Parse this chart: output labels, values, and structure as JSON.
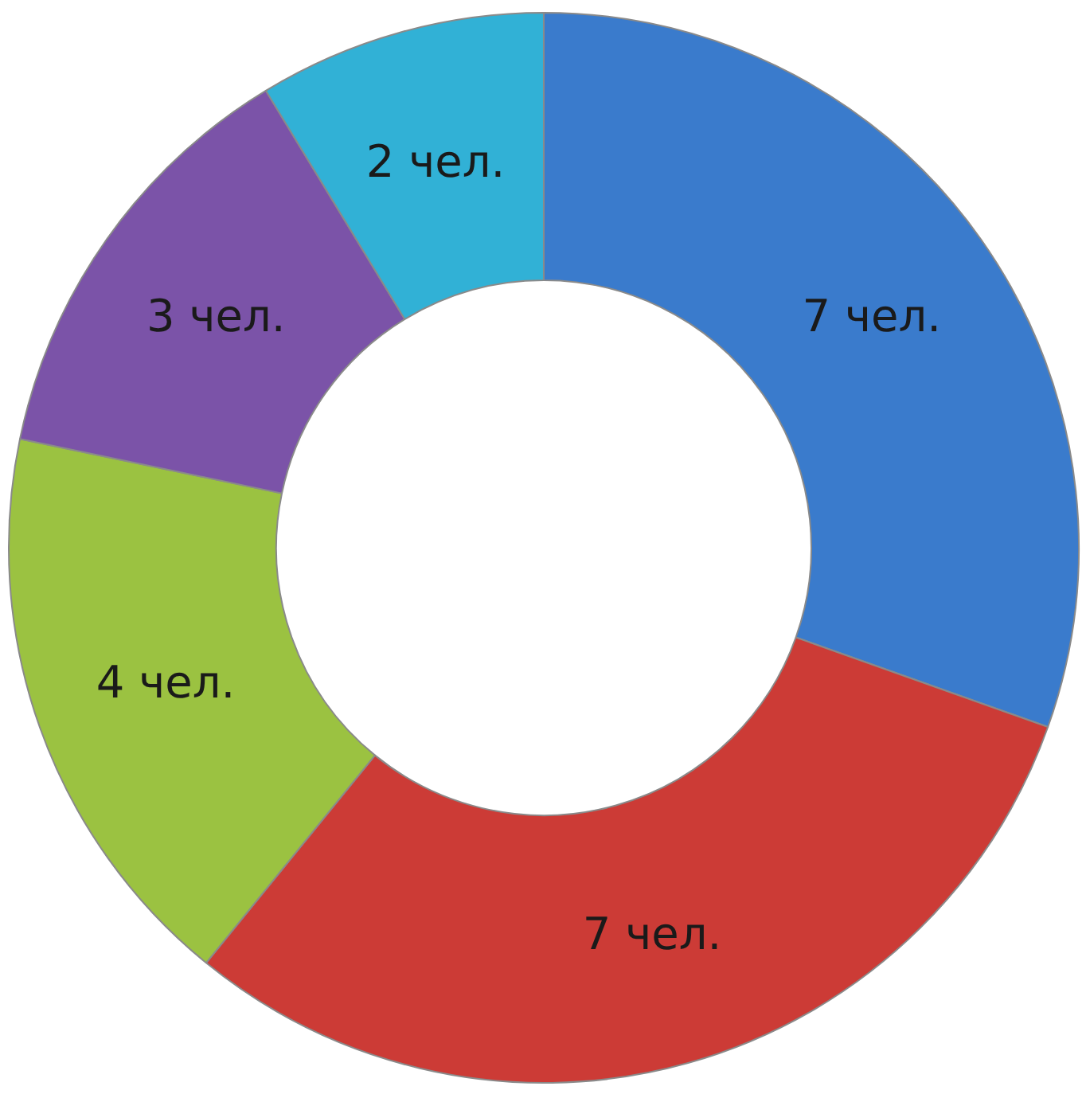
{
  "chart_data": {
    "type": "donut",
    "categories": [
      null,
      null,
      null,
      null,
      null
    ],
    "values": [
      7,
      7,
      4,
      3,
      2
    ],
    "colors": [
      "#3a7bcc",
      "#cc3b36",
      "#9bc241",
      "#7b53a8",
      "#31b1d6"
    ],
    "value_labels": [
      "7 чел.",
      "7 чел.",
      "4 чел.",
      "3 чел.",
      "2 чел."
    ]
  }
}
